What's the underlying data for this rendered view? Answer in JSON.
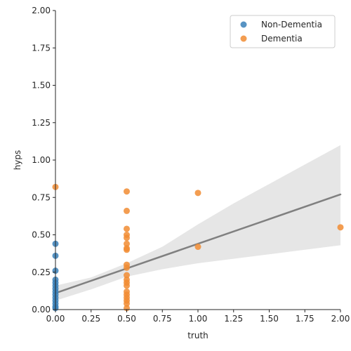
{
  "chart_data": {
    "type": "scatter",
    "title": "",
    "xlabel": "truth",
    "ylabel": "hyps",
    "xlim": [
      0,
      2
    ],
    "ylim": [
      0,
      2
    ],
    "xticks": [
      "0.00",
      "0.25",
      "0.50",
      "0.75",
      "1.00",
      "1.25",
      "1.50",
      "1.75",
      "2.00"
    ],
    "yticks": [
      "0.00",
      "0.25",
      "0.50",
      "0.75",
      "1.00",
      "1.25",
      "1.50",
      "1.75",
      "2.00"
    ],
    "grid": false,
    "legend": "top-right",
    "series": [
      {
        "name": "Non-Dementia",
        "color": "#3a80b9",
        "points": [
          [
            0,
            0.44
          ],
          [
            0,
            0.36
          ],
          [
            0,
            0.26
          ],
          [
            0,
            0.2
          ],
          [
            0,
            0.18
          ],
          [
            0,
            0.16
          ],
          [
            0,
            0.14
          ],
          [
            0,
            0.12
          ],
          [
            0,
            0.1
          ],
          [
            0,
            0.08
          ],
          [
            0,
            0.06
          ],
          [
            0,
            0.04
          ],
          [
            0,
            0.02
          ],
          [
            0,
            0.01
          ]
        ]
      },
      {
        "name": "Dementia",
        "color": "#f18c33",
        "points": [
          [
            0,
            0.82
          ],
          [
            0.5,
            0.79
          ],
          [
            0.5,
            0.66
          ],
          [
            0.5,
            0.54
          ],
          [
            0.5,
            0.5
          ],
          [
            0.5,
            0.48
          ],
          [
            0.5,
            0.44
          ],
          [
            0.5,
            0.41
          ],
          [
            0.5,
            0.4
          ],
          [
            0.5,
            0.3
          ],
          [
            0.5,
            0.28
          ],
          [
            0.5,
            0.23
          ],
          [
            0.5,
            0.2
          ],
          [
            0.5,
            0.18
          ],
          [
            0.5,
            0.16
          ],
          [
            0.5,
            0.12
          ],
          [
            0.5,
            0.1
          ],
          [
            0.5,
            0.08
          ],
          [
            0.5,
            0.06
          ],
          [
            0.5,
            0.04
          ],
          [
            0.5,
            0.01
          ],
          [
            1.0,
            0.78
          ],
          [
            1.0,
            0.42
          ],
          [
            2.0,
            0.55
          ]
        ]
      }
    ],
    "regression": {
      "color": "#808080",
      "band_color": "#e6e6e6",
      "line": [
        [
          0,
          0.11
        ],
        [
          2,
          0.77
        ]
      ],
      "ci_lower": [
        [
          0,
          0.06
        ],
        [
          0.25,
          0.135
        ],
        [
          0.5,
          0.22
        ],
        [
          0.75,
          0.27
        ],
        [
          1.0,
          0.31
        ],
        [
          1.25,
          0.34
        ],
        [
          1.5,
          0.37
        ],
        [
          1.75,
          0.4
        ],
        [
          2.0,
          0.43
        ]
      ],
      "ci_upper": [
        [
          0,
          0.16
        ],
        [
          0.25,
          0.215
        ],
        [
          0.5,
          0.31
        ],
        [
          0.75,
          0.42
        ],
        [
          1.0,
          0.57
        ],
        [
          1.25,
          0.71
        ],
        [
          1.5,
          0.84
        ],
        [
          1.75,
          0.97
        ],
        [
          2.0,
          1.1
        ]
      ]
    }
  }
}
